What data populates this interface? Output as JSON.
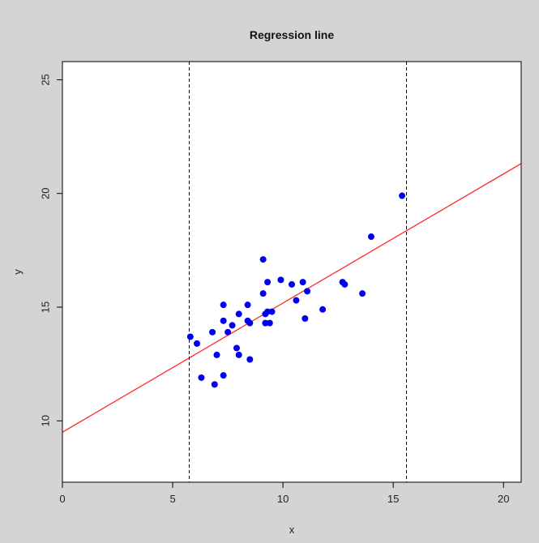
{
  "chart_data": {
    "type": "scatter",
    "title": "Regression line",
    "xlabel": "x",
    "ylabel": "y",
    "xlim": [
      0,
      20.8
    ],
    "ylim": [
      7.3,
      25.8
    ],
    "xticks": [
      0,
      5,
      10,
      15,
      20
    ],
    "yticks": [
      10,
      15,
      20,
      25
    ],
    "grid": false,
    "points": [
      {
        "x": 5.8,
        "y": 13.7
      },
      {
        "x": 6.1,
        "y": 13.4
      },
      {
        "x": 6.3,
        "y": 11.9
      },
      {
        "x": 6.8,
        "y": 13.9
      },
      {
        "x": 6.9,
        "y": 11.6
      },
      {
        "x": 7.0,
        "y": 12.9
      },
      {
        "x": 7.3,
        "y": 15.1
      },
      {
        "x": 7.3,
        "y": 14.4
      },
      {
        "x": 7.3,
        "y": 12.0
      },
      {
        "x": 7.5,
        "y": 13.9
      },
      {
        "x": 7.7,
        "y": 14.2
      },
      {
        "x": 7.9,
        "y": 13.2
      },
      {
        "x": 8.0,
        "y": 14.7
      },
      {
        "x": 8.0,
        "y": 12.9
      },
      {
        "x": 8.4,
        "y": 15.1
      },
      {
        "x": 8.4,
        "y": 14.4
      },
      {
        "x": 8.5,
        "y": 14.3
      },
      {
        "x": 8.5,
        "y": 12.7
      },
      {
        "x": 9.1,
        "y": 17.1
      },
      {
        "x": 9.1,
        "y": 15.6
      },
      {
        "x": 9.2,
        "y": 14.7
      },
      {
        "x": 9.2,
        "y": 14.3
      },
      {
        "x": 9.3,
        "y": 16.1
      },
      {
        "x": 9.3,
        "y": 14.8
      },
      {
        "x": 9.4,
        "y": 14.3
      },
      {
        "x": 9.5,
        "y": 14.8
      },
      {
        "x": 9.9,
        "y": 16.2
      },
      {
        "x": 10.4,
        "y": 16.0
      },
      {
        "x": 10.6,
        "y": 15.3
      },
      {
        "x": 10.9,
        "y": 16.1
      },
      {
        "x": 11.0,
        "y": 14.5
      },
      {
        "x": 11.1,
        "y": 15.7
      },
      {
        "x": 11.8,
        "y": 14.9
      },
      {
        "x": 12.7,
        "y": 16.1
      },
      {
        "x": 12.8,
        "y": 16.0
      },
      {
        "x": 13.6,
        "y": 15.6
      },
      {
        "x": 14.0,
        "y": 18.1
      },
      {
        "x": 15.4,
        "y": 19.9
      }
    ],
    "regression_line": {
      "intercept": 9.5,
      "slope": 0.568
    },
    "vertical_lines": [
      5.75,
      15.6
    ],
    "colors": {
      "points": "#0000ee",
      "line": "#ff2a2a",
      "vlines": "#000000",
      "background": "#d4d4d4",
      "plot_bg": "#ffffff"
    }
  }
}
